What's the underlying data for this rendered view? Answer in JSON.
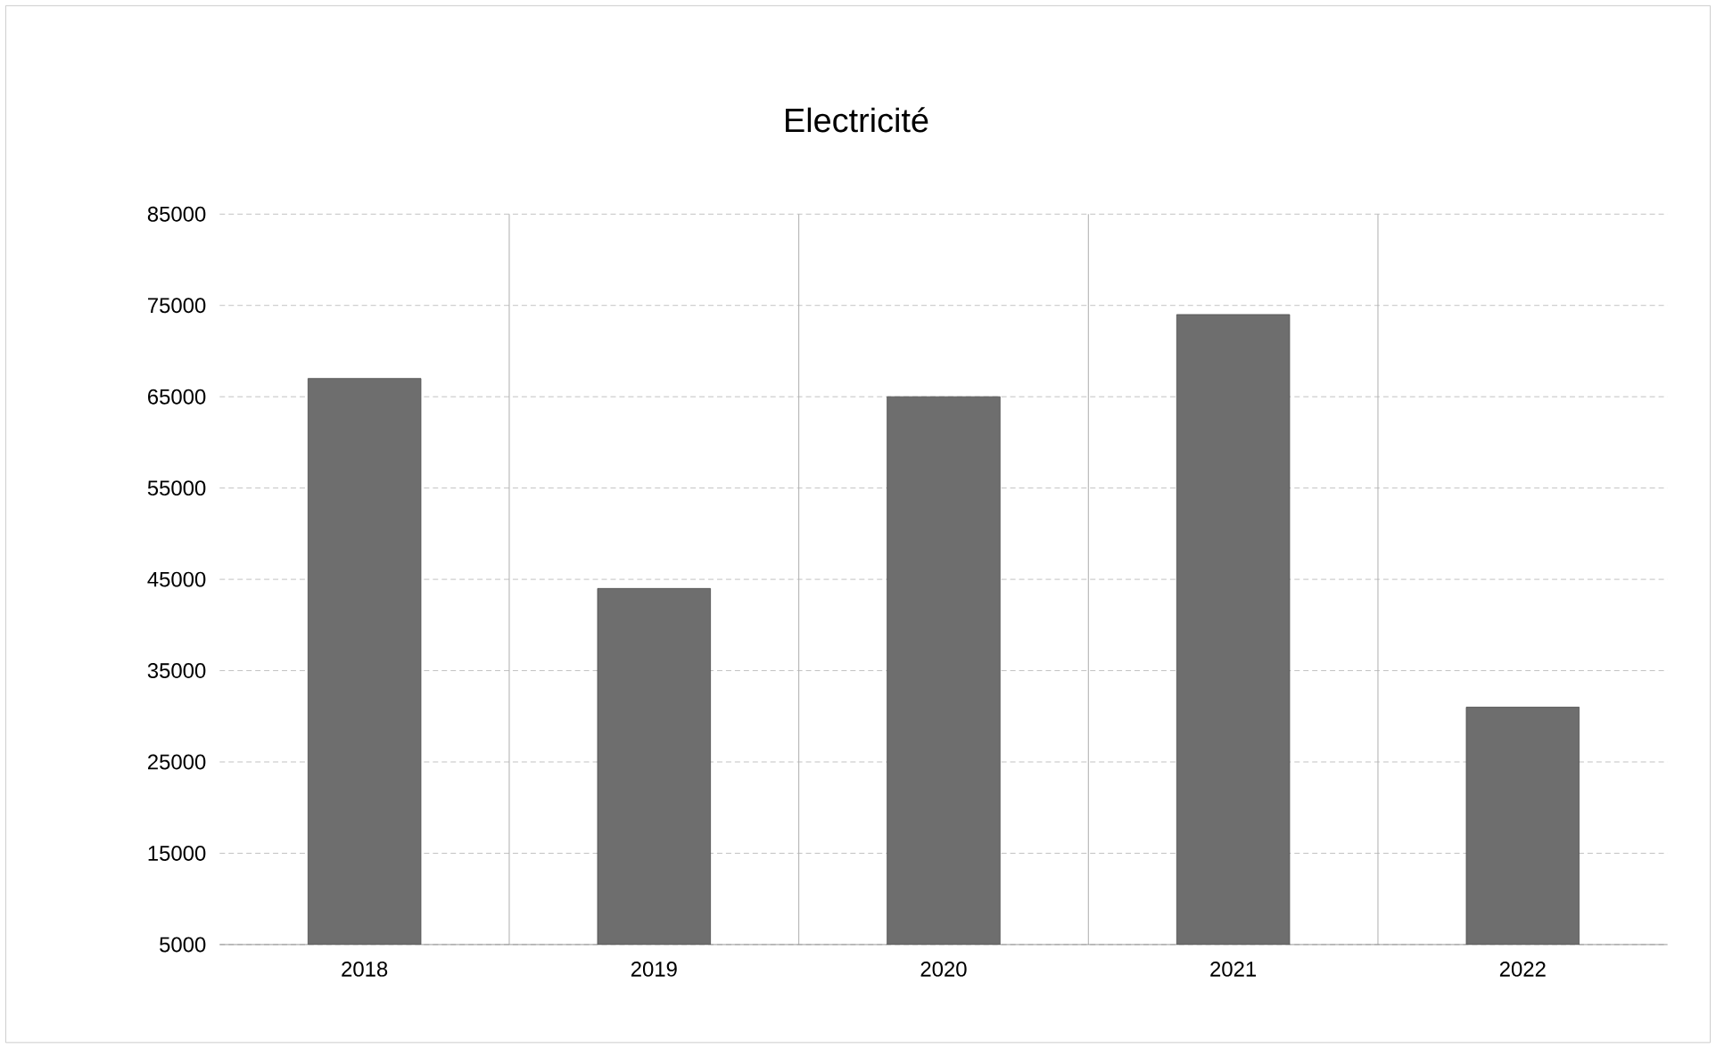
{
  "chart_data": {
    "type": "bar",
    "title": "Electricité",
    "categories": [
      "2018",
      "2019",
      "2020",
      "2021",
      "2022"
    ],
    "values": [
      67000,
      44000,
      65000,
      74000,
      31000
    ],
    "color": "#6e6e6e",
    "ylim": [
      5000,
      85000
    ],
    "yticks": [
      5000,
      15000,
      25000,
      35000,
      45000,
      55000,
      65000,
      75000,
      85000
    ],
    "grid": true
  }
}
